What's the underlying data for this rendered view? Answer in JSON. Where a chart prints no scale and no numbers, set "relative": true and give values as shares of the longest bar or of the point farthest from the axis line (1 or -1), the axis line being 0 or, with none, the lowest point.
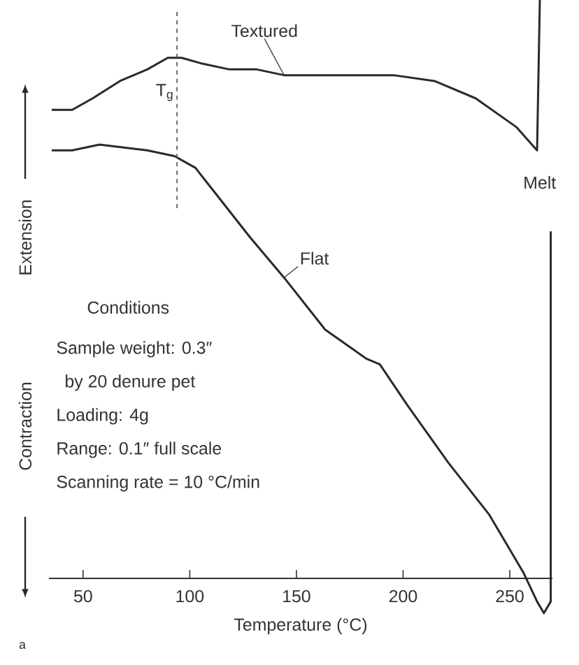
{
  "chart_data": {
    "type": "line",
    "relative": true,
    "xlabel": "Temperature (°C)",
    "xlim": [
      34,
      270
    ],
    "xticks": [
      50,
      100,
      150,
      200,
      250
    ],
    "series": [
      {
        "name": "Textured",
        "color": "#2a2a2a",
        "x": [
          35.3,
          44.9,
          54.5,
          67.3,
          80.1,
          89.7,
          96.2,
          105.8,
          118.6,
          131.4,
          144.2,
          169.9,
          195.5,
          214.7,
          234.0,
          253.2,
          262.8,
          264.1
        ],
        "values": [
          0.81,
          0.81,
          0.83,
          0.86,
          0.88,
          0.9,
          0.9,
          0.89,
          0.88,
          0.88,
          0.87,
          0.87,
          0.87,
          0.86,
          0.83,
          0.78,
          0.74,
          1
        ]
      },
      {
        "name": "Flat",
        "color": "#2a2a2a",
        "x": [
          35.3,
          44.9,
          57.7,
          80.1,
          92.9,
          102.6,
          115.4,
          128.2,
          144.2,
          163.5,
          182.7,
          189.1,
          201.9,
          221.2,
          240.4,
          256.4,
          262.8,
          266.0,
          269.2,
          269.2
        ],
        "values": [
          0.74,
          0.74,
          0.75,
          0.74,
          0.73,
          0.71,
          0.65,
          0.59,
          0.52,
          0.43,
          0.38,
          0.37,
          0.3,
          0.2,
          0.11,
          0.01,
          -0.04,
          -0.06,
          -0.04,
          0.6
        ]
      }
    ],
    "ref_lines": [
      {
        "axis": "x",
        "value": 94,
        "label": "T$_{g}$",
        "line_style": "dashed"
      }
    ],
    "annotations": [
      {
        "text": "Melt",
        "x": 264,
        "y": 0.74
      },
      "Extension",
      "Contraction",
      "Conditions",
      "Sample weight: 0.3″",
      "by 20 denure pet",
      "Loading: 4g",
      "Range: 0.1″ full scale",
      "Scanning rate = 10 °C/min",
      "a"
    ],
    "grid": false,
    "marker": "none",
    "line_style": "solid"
  }
}
